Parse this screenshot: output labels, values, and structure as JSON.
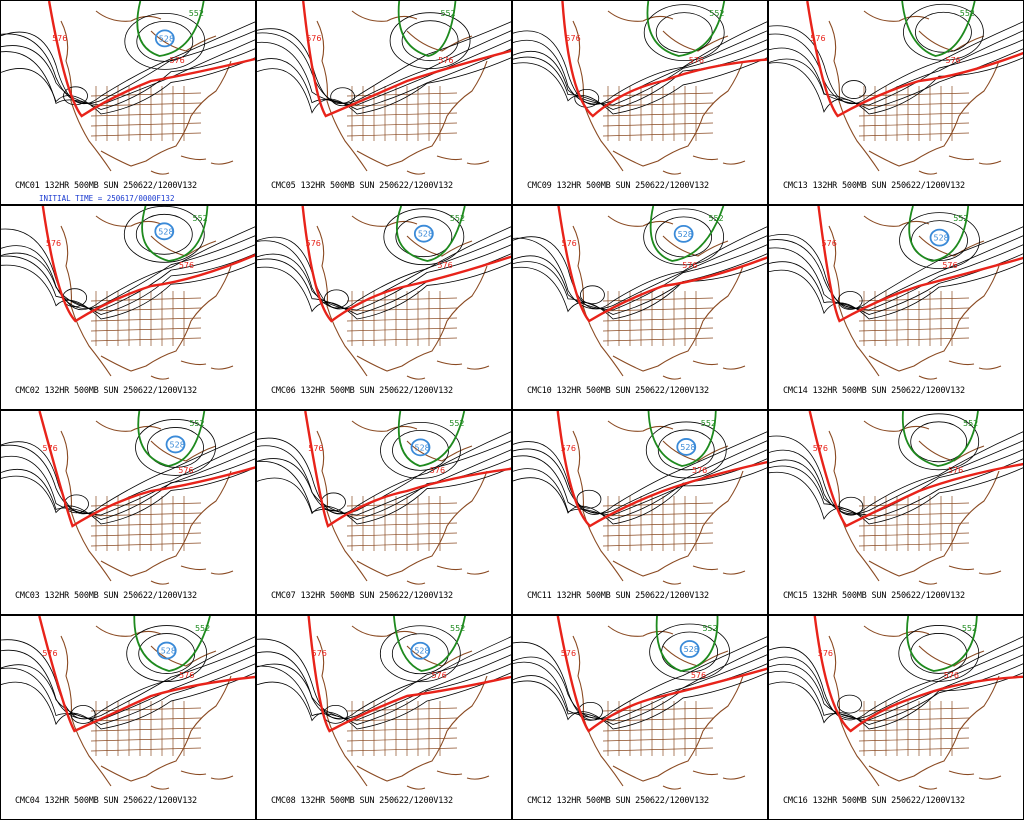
{
  "colors": {
    "contour": "#000000",
    "h576": "#e8231a",
    "h552": "#1e8a1e",
    "h528": "#3a8ad8",
    "coast": "#8a4a22"
  },
  "initial_time": "INITIAL TIME = 250617/0000F132",
  "contour_labels": {
    "red": "576",
    "green": "552",
    "blue": "528"
  },
  "panels": [
    {
      "label": "CMC01 132HR 500MB SUN 250622/1200V132",
      "has_blue": true
    },
    {
      "label": "CMC05 132HR 500MB SUN 250622/1200V132",
      "has_blue": false
    },
    {
      "label": "CMC09 132HR 500MB SUN 250622/1200V132",
      "has_blue": false
    },
    {
      "label": "CMC13 132HR 500MB SUN 250622/1200V132",
      "has_blue": false
    },
    {
      "label": "CMC02 132HR 500MB SUN 250622/1200V132",
      "has_blue": true
    },
    {
      "label": "CMC06 132HR 500MB SUN 250622/1200V132",
      "has_blue": true
    },
    {
      "label": "CMC10 132HR 500MB SUN 250622/1200V132",
      "has_blue": true
    },
    {
      "label": "CMC14 132HR 500MB SUN 250622/1200V132",
      "has_blue": true
    },
    {
      "label": "CMC03 132HR 500MB SUN 250622/1200V132",
      "has_blue": true
    },
    {
      "label": "CMC07 132HR 500MB SUN 250622/1200V132",
      "has_blue": true
    },
    {
      "label": "CMC11 132HR 500MB SUN 250622/1200V132",
      "has_blue": true
    },
    {
      "label": "CMC15 132HR 500MB SUN 250622/1200V132",
      "has_blue": false
    },
    {
      "label": "CMC04 132HR 500MB SUN 250622/1200V132",
      "has_blue": true
    },
    {
      "label": "CMC08 132HR 500MB SUN 250622/1200V132",
      "has_blue": true
    },
    {
      "label": "CMC12 132HR 500MB SUN 250622/1200V132",
      "has_blue": true
    },
    {
      "label": "CMC16 132HR 500MB SUN 250622/1200V132",
      "has_blue": false
    }
  ]
}
